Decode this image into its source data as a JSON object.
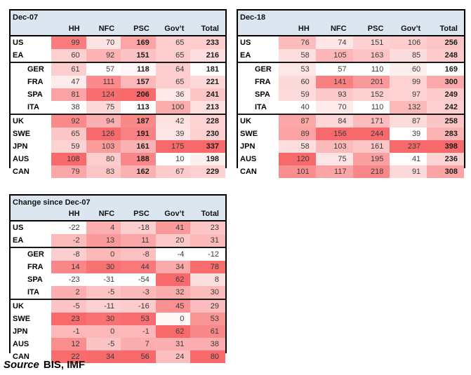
{
  "style": {
    "header_bg": "#DCE6F1",
    "heat_min_color": "#FFFFFF",
    "heat_max_color": "#F8696B",
    "border_color": "#000000"
  },
  "source": {
    "prefix": "Source",
    "rest": "BIS, IMF"
  },
  "chart_data": [
    {
      "type": "heatmap",
      "title": "Dec-07",
      "columns": [
        "HH",
        "NFC",
        "PSC",
        "Gov’t",
        "Total"
      ],
      "rows": [
        "US",
        "EA",
        "GER",
        "FRA",
        "SPA",
        "ITA",
        "UK",
        "SWE",
        "JPN",
        "AUS",
        "CAN"
      ],
      "indented_rows": [
        "GER",
        "FRA",
        "SPA",
        "ITA"
      ],
      "separator_after_rows": [
        "EA",
        "ITA"
      ],
      "bold_columns": [
        "PSC",
        "Total"
      ],
      "color_scale": {
        "scope": "per-column",
        "min": "white",
        "max": "red"
      },
      "values": [
        [
          99,
          70,
          169,
          65,
          233
        ],
        [
          60,
          92,
          151,
          65,
          216
        ],
        [
          61,
          57,
          118,
          64,
          181
        ],
        [
          47,
          111,
          157,
          65,
          221
        ],
        [
          81,
          124,
          206,
          36,
          241
        ],
        [
          38,
          75,
          113,
          100,
          213
        ],
        [
          92,
          94,
          187,
          42,
          228
        ],
        [
          65,
          126,
          191,
          39,
          230
        ],
        [
          59,
          103,
          161,
          175,
          337
        ],
        [
          108,
          80,
          188,
          10,
          198
        ],
        [
          79,
          83,
          162,
          67,
          229
        ]
      ]
    },
    {
      "type": "heatmap",
      "title": "Dec-18",
      "columns": [
        "HH",
        "NFC",
        "PSC",
        "Gov’t",
        "Total"
      ],
      "rows": [
        "US",
        "EA",
        "GER",
        "FRA",
        "SPA",
        "ITA",
        "UK",
        "SWE",
        "JPN",
        "AUS",
        "CAN"
      ],
      "indented_rows": [
        "GER",
        "FRA",
        "SPA",
        "ITA"
      ],
      "separator_after_rows": [
        "EA",
        "ITA"
      ],
      "bold_columns": [
        "Total"
      ],
      "color_scale": {
        "scope": "per-column",
        "min": "white",
        "max": "red"
      },
      "values": [
        [
          76,
          74,
          151,
          106,
          256
        ],
        [
          58,
          105,
          163,
          85,
          248
        ],
        [
          53,
          57,
          110,
          60,
          169
        ],
        [
          60,
          141,
          201,
          99,
          300
        ],
        [
          59,
          93,
          152,
          97,
          249
        ],
        [
          40,
          70,
          110,
          132,
          242
        ],
        [
          87,
          84,
          171,
          87,
          258
        ],
        [
          89,
          156,
          244,
          39,
          283
        ],
        [
          58,
          103,
          161,
          237,
          398
        ],
        [
          120,
          75,
          195,
          41,
          236
        ],
        [
          101,
          117,
          218,
          91,
          308
        ]
      ]
    },
    {
      "type": "heatmap",
      "title": "Change since Dec-07",
      "columns": [
        "HH",
        "NFC",
        "PSC",
        "Gov’t",
        "Total"
      ],
      "rows": [
        "US",
        "EA",
        "GER",
        "FRA",
        "SPA",
        "ITA",
        "UK",
        "SWE",
        "JPN",
        "AUS",
        "CAN"
      ],
      "indented_rows": [
        "GER",
        "FRA",
        "SPA",
        "ITA"
      ],
      "separator_after_rows": [
        "EA",
        "ITA"
      ],
      "bold_columns": [],
      "color_scale": {
        "scope": "per-column",
        "min": "white",
        "max": "red"
      },
      "values": [
        [
          -22,
          4,
          -18,
          41,
          23
        ],
        [
          -2,
          13,
          11,
          20,
          31
        ],
        [
          -8,
          0,
          -8,
          -4,
          -12
        ],
        [
          14,
          30,
          44,
          34,
          78
        ],
        [
          -23,
          -31,
          -54,
          62,
          8
        ],
        [
          2,
          -5,
          -3,
          32,
          30
        ],
        [
          -5,
          -11,
          -16,
          45,
          29
        ],
        [
          23,
          30,
          53,
          0,
          53
        ],
        [
          -1,
          0,
          -1,
          62,
          61
        ],
        [
          12,
          -5,
          7,
          31,
          38
        ],
        [
          22,
          34,
          56,
          24,
          80
        ]
      ]
    }
  ]
}
